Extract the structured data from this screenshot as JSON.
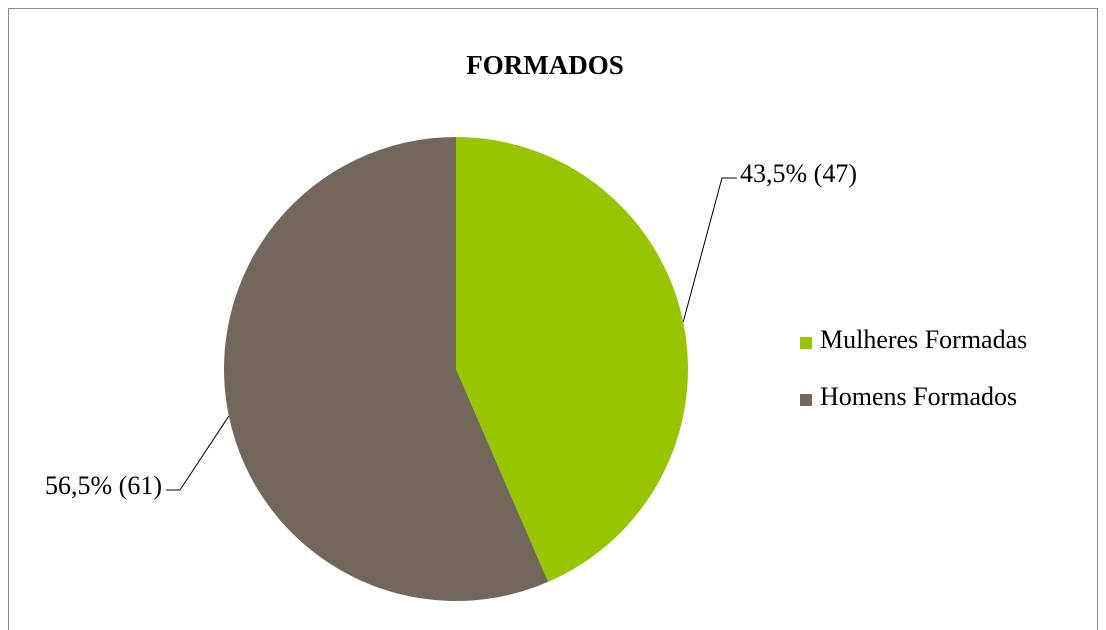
{
  "chart_data": {
    "type": "pie",
    "title": "FORMADOS",
    "categories": [
      "Mulheres Formadas",
      "Homens Formados"
    ],
    "values": [
      43.5,
      56.5
    ],
    "value_labels": [
      "43,5% (47)",
      "56,5% (61)"
    ],
    "colors": [
      "#97c600",
      "#72675a"
    ],
    "legend": "right"
  }
}
